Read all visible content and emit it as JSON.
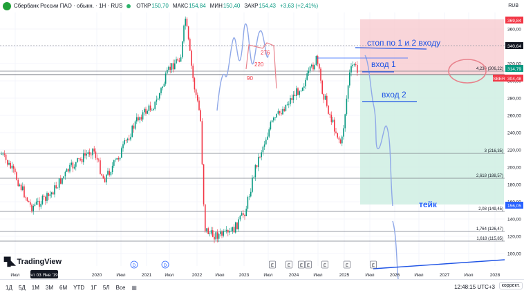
{
  "header": {
    "title": "Сбербанк России ПАО · обыкн. · 1Н · RUS",
    "open_label": "ОТКР",
    "open": "150,70",
    "high_label": "МАКС",
    "high": "154,84",
    "low_label": "МИН",
    "low": "150,40",
    "close_label": "ЗАКР",
    "close": "154,43",
    "change": "+3,63 (+2,41%)",
    "currency": "RUB"
  },
  "price_axis": {
    "ticks": [
      "360,00",
      "340,00",
      "320,00",
      "300,00",
      "280,00",
      "260,00",
      "240,00",
      "220,00",
      "200,00",
      "180,00",
      "160,00",
      "140,00",
      "120,00",
      "100,00"
    ],
    "labels": {
      "red_top": "369,84",
      "current": "340,64",
      "green": "314,79",
      "sber_tag": "SBER",
      "sber_price": "304,48",
      "blue": "156,05"
    }
  },
  "time_axis": [
    "Июл",
    "2020",
    "Июл",
    "2021",
    "Июл",
    "2022",
    "Июл",
    "2023",
    "Июл",
    "2024",
    "Июл",
    "2025",
    "Июл",
    "2026",
    "Июл",
    "2027",
    "Июл",
    "2028"
  ],
  "crosshair_date": "чт 03 Янв '19",
  "fib_levels": [
    "4,236 (306,22)",
    "3 (216,35)",
    "2,618 (188,57)",
    "2,08 (149,45)",
    "1,764 (126,47)",
    "1,618 (115,85)"
  ],
  "annotations": {
    "stop": "стоп по 1 и 2 входу",
    "entry1": "вход 1",
    "entry2": "вход 2",
    "take": "тейк",
    "n276": "276",
    "n220": "220",
    "n90": "90"
  },
  "event_markers": [
    "D",
    "D",
    "E",
    "E",
    "E",
    "E",
    "E",
    "E",
    "E"
  ],
  "bottom": {
    "timeframes": [
      "1Д",
      "5Д",
      "1М",
      "3М",
      "6М",
      "YTD",
      "1Г",
      "5Л",
      "Все"
    ],
    "clock": "12:48:15 UTC+3",
    "correction": "коррект."
  },
  "logo": "TradingView",
  "colors": {
    "up": "#089981",
    "down": "#f23645",
    "stop_zone": "#f7c7cc",
    "take_zone": "#cfeee3",
    "annot": "#1e53e5"
  }
}
